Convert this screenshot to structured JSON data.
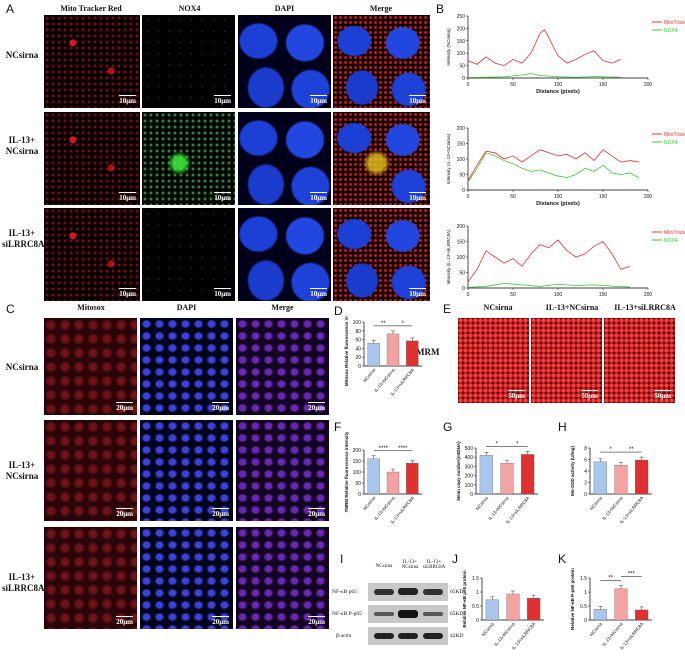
{
  "panel_letters": [
    "A",
    "B",
    "C",
    "D",
    "E",
    "F",
    "G",
    "H",
    "I",
    "J",
    "K"
  ],
  "panelA": {
    "col_headers": [
      "Mito Tracker Red",
      "NOX4",
      "DAPI",
      "Merge"
    ],
    "rows": [
      {
        "label_1": "NCsirna",
        "label_2": ""
      },
      {
        "label_1": "IL-13+",
        "label_2": "NCsirna"
      },
      {
        "label_1": "IL-13+",
        "label_2": "siLRRC8A"
      }
    ],
    "scale": "10μm"
  },
  "panelC": {
    "col_headers": [
      "Mitosox",
      "DAPI",
      "Merge"
    ],
    "rows": [
      {
        "label_1": "NCsirna",
        "label_2": ""
      },
      {
        "label_1": "IL-13+",
        "label_2": "NCsirna"
      },
      {
        "label_1": "IL-13+",
        "label_2": "siLRRC8A"
      }
    ],
    "scale": "20μm"
  },
  "panelE": {
    "col_headers": [
      "NCsirna",
      "IL-13+NCsirna",
      "IL-13+siLRRC8A"
    ],
    "side_label": "TMRM",
    "scale": "50μm"
  },
  "panelI": {
    "lane_labels": [
      "NCsirna",
      "IL-13+ NCsirna",
      "IL-13+ siLRRC8A"
    ],
    "row_labels": [
      "NF-κB p65",
      "NF-κB P-p65",
      "β-actin"
    ],
    "kd_labels": [
      "65KD",
      "65KD",
      "42KD"
    ]
  },
  "colors": {
    "blue": "#a9c6ec",
    "salmon": "#f4a3a3",
    "red": "#e03030",
    "green": "#33cc33",
    "red_line": "#e83030"
  },
  "chart_data": [
    {
      "panel": "B",
      "type": "line",
      "legend": [
        "MitoTracker red",
        "NOX4"
      ],
      "ylabel": "Intensity (NCsirna)",
      "xlabel": "Distance (pixels)",
      "xlim": [
        0,
        200
      ],
      "ylim": [
        0,
        250
      ],
      "xticks": [
        0,
        50,
        100,
        150,
        200
      ],
      "yticks": [
        0,
        50,
        100,
        150,
        200,
        250
      ],
      "series": [
        {
          "name": "MitoTracker red",
          "x": [
            0,
            10,
            20,
            30,
            40,
            50,
            60,
            70,
            80,
            85,
            90,
            100,
            110,
            120,
            130,
            140,
            150,
            160,
            170
          ],
          "values": [
            70,
            55,
            85,
            60,
            50,
            75,
            60,
            100,
            180,
            195,
            160,
            90,
            60,
            75,
            95,
            110,
            70,
            60,
            75
          ]
        },
        {
          "name": "NOX4",
          "x": [
            0,
            20,
            40,
            60,
            70,
            80,
            100,
            120,
            140,
            160,
            170
          ],
          "values": [
            2,
            3,
            5,
            12,
            18,
            10,
            5,
            3,
            6,
            4,
            3
          ]
        }
      ]
    },
    {
      "panel": "B",
      "type": "line",
      "legend": [
        "MitoTracker red",
        "NOX4"
      ],
      "ylabel": "Intensity (IL-13+NCsirna)",
      "xlabel": "Distance (pixels)",
      "xlim": [
        0,
        200
      ],
      "ylim": [
        0,
        200
      ],
      "xticks": [
        0,
        50,
        100,
        150,
        200
      ],
      "yticks": [
        0,
        50,
        100,
        150,
        200
      ],
      "series": [
        {
          "name": "MitoTracker red",
          "x": [
            0,
            10,
            20,
            30,
            40,
            50,
            60,
            70,
            80,
            90,
            100,
            110,
            120,
            130,
            140,
            150,
            160,
            170,
            180,
            190
          ],
          "values": [
            30,
            80,
            125,
            120,
            100,
            110,
            90,
            110,
            130,
            120,
            110,
            115,
            100,
            120,
            95,
            130,
            110,
            90,
            95,
            90
          ]
        },
        {
          "name": "NOX4",
          "x": [
            0,
            10,
            20,
            30,
            40,
            50,
            60,
            70,
            80,
            90,
            100,
            110,
            120,
            130,
            140,
            150,
            160,
            170,
            180,
            190
          ],
          "values": [
            25,
            70,
            120,
            110,
            95,
            85,
            70,
            60,
            65,
            55,
            45,
            40,
            50,
            70,
            60,
            80,
            55,
            50,
            55,
            40
          ]
        }
      ]
    },
    {
      "panel": "B",
      "type": "line",
      "legend": [
        "MitoTracker red",
        "NOX4"
      ],
      "ylabel": "Intensity (IL-13+siLRRC8A)",
      "xlabel": "Distance (pixels)",
      "xlim": [
        0,
        200
      ],
      "ylim": [
        0,
        200
      ],
      "xticks": [
        0,
        50,
        100,
        150,
        200
      ],
      "yticks": [
        0,
        50,
        100,
        150,
        200
      ],
      "series": [
        {
          "name": "MitoTracker red",
          "x": [
            0,
            10,
            20,
            30,
            40,
            50,
            60,
            70,
            80,
            90,
            100,
            110,
            120,
            130,
            140,
            150,
            160,
            170,
            180
          ],
          "values": [
            20,
            60,
            120,
            100,
            80,
            95,
            70,
            110,
            140,
            130,
            155,
            120,
            100,
            110,
            135,
            150,
            110,
            60,
            70
          ]
        },
        {
          "name": "NOX4",
          "x": [
            0,
            20,
            40,
            60,
            80,
            100,
            120,
            140,
            160,
            180
          ],
          "values": [
            2,
            5,
            15,
            10,
            5,
            12,
            8,
            10,
            6,
            3
          ]
        }
      ]
    },
    {
      "panel": "D",
      "type": "bar",
      "ylabel": "Mitosox Relative fluorescence intensity",
      "categories": [
        "NCsirna",
        "IL-13+NCsirna",
        "IL-13+siLRRC8A"
      ],
      "values": [
        52,
        73,
        57
      ],
      "ylim": [
        0,
        100
      ],
      "yticks": [
        0,
        20,
        40,
        60,
        80,
        100
      ],
      "sig": [
        [
          "**",
          0,
          1
        ],
        [
          "*",
          1,
          2
        ]
      ]
    },
    {
      "panel": "F",
      "type": "bar",
      "ylabel": "TMRM Relative fluorescence intensity",
      "categories": [
        "NCsirna",
        "IL-13+NCsirna",
        "IL-13+siLRRC8A"
      ],
      "values": [
        160,
        100,
        140
      ],
      "ylim": [
        0,
        200
      ],
      "yticks": [
        0,
        50,
        100,
        150,
        200
      ],
      "sig": [
        [
          "****",
          0,
          1
        ],
        [
          "****",
          1,
          2
        ]
      ]
    },
    {
      "panel": "G",
      "type": "bar",
      "ylabel": "Mean copy number(mtDNA)",
      "categories": [
        "NCsirna",
        "IL-13+NCsirna",
        "IL-13+siLRRC8A"
      ],
      "values": [
        420,
        335,
        430
      ],
      "ylim": [
        0,
        500
      ],
      "yticks": [
        0,
        100,
        200,
        300,
        400,
        500
      ],
      "sig": [
        [
          "*",
          0,
          1
        ],
        [
          "*",
          1,
          2
        ]
      ]
    },
    {
      "panel": "H",
      "type": "bar",
      "ylabel": "Mn-SOD activity (U/mg)",
      "categories": [
        "NCsirna",
        "IL-13+NCsirna",
        "IL-13+siLRRC8A"
      ],
      "values": [
        5.6,
        5.0,
        5.9
      ],
      "ylim": [
        0,
        8
      ],
      "yticks": [
        0,
        2,
        4,
        6,
        8
      ],
      "sig": [
        [
          "*",
          0,
          1
        ],
        [
          "**",
          1,
          2
        ]
      ]
    },
    {
      "panel": "J",
      "type": "bar",
      "ylabel": "Relative NF-κB p65 protein",
      "categories": [
        "NCsirna",
        "IL-13+NCsirna",
        "IL-13+siLRRC8A"
      ],
      "values": [
        0.72,
        0.93,
        0.78
      ],
      "ylim": [
        0,
        1.5
      ],
      "yticks": [
        0.0,
        0.5,
        1.0,
        1.5
      ],
      "sig": []
    },
    {
      "panel": "K",
      "type": "bar",
      "ylabel": "Relative NF-κB P-p65 protein",
      "categories": [
        "NCsirna",
        "IL-13+NCsirna",
        "IL-13+siLRRC8A"
      ],
      "values": [
        0.38,
        1.12,
        0.36
      ],
      "ylim": [
        0,
        1.5
      ],
      "yticks": [
        0.0,
        0.5,
        1.0,
        1.5
      ],
      "sig": [
        [
          "**",
          0,
          1
        ],
        [
          "***",
          1,
          2
        ]
      ]
    }
  ]
}
